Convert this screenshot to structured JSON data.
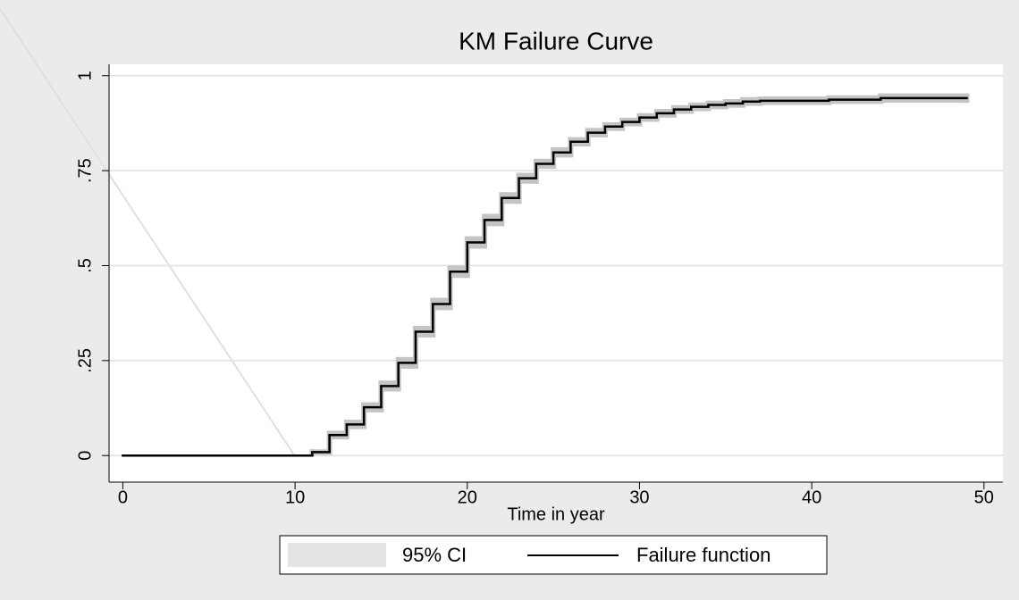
{
  "chart_data": {
    "type": "step",
    "title": "KM Failure Curve",
    "x_label": "Time in year",
    "x": [
      0,
      11,
      12,
      13,
      14,
      15,
      16,
      17,
      18,
      19,
      20,
      21,
      22,
      23,
      24,
      25,
      26,
      27,
      28,
      29,
      30,
      31,
      32,
      33,
      34,
      35,
      36,
      37,
      41,
      44,
      49
    ],
    "series": [
      {
        "name": "Failure function",
        "color": "#000000",
        "values": [
          0,
          0.009,
          0.054,
          0.082,
          0.127,
          0.183,
          0.244,
          0.326,
          0.399,
          0.484,
          0.561,
          0.62,
          0.678,
          0.73,
          0.768,
          0.798,
          0.826,
          0.85,
          0.866,
          0.878,
          0.89,
          0.901,
          0.911,
          0.918,
          0.923,
          0.927,
          0.932,
          0.934,
          0.937,
          0.941,
          0.941
        ]
      }
    ],
    "ci": {
      "name": "95% CI",
      "color": "#c4c4c4",
      "legend_color": "#e4e4e4",
      "lower": [
        0,
        0.004,
        0.045,
        0.072,
        0.116,
        0.171,
        0.231,
        0.313,
        0.385,
        0.47,
        0.547,
        0.606,
        0.665,
        0.718,
        0.757,
        0.787,
        0.816,
        0.84,
        0.857,
        0.869,
        0.881,
        0.892,
        0.902,
        0.909,
        0.914,
        0.918,
        0.923,
        0.925,
        0.928,
        0.931,
        0.931
      ],
      "upper": [
        0,
        0.014,
        0.063,
        0.092,
        0.138,
        0.195,
        0.257,
        0.339,
        0.413,
        0.498,
        0.575,
        0.634,
        0.691,
        0.742,
        0.779,
        0.809,
        0.836,
        0.86,
        0.875,
        0.887,
        0.899,
        0.91,
        0.92,
        0.927,
        0.932,
        0.936,
        0.941,
        0.943,
        0.946,
        0.951,
        0.951
      ]
    },
    "xlim": [
      -0.8,
      51.1
    ],
    "ylim": [
      -0.07,
      1.03
    ],
    "xticks": [
      0,
      10,
      20,
      30,
      40,
      50
    ],
    "yticks": [
      0,
      {
        "value": 0.25,
        "label": ".25"
      },
      {
        "value": 0.5,
        "label": ".5"
      },
      {
        "value": 0.75,
        "label": ".75"
      },
      1
    ],
    "grid": true
  }
}
